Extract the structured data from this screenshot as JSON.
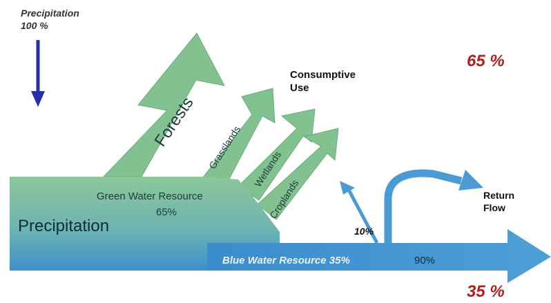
{
  "header": {
    "precip_title": "Precipitation",
    "precip_value": "100 %"
  },
  "percent_top": "65 %",
  "percent_bottom": "35 %",
  "consumptive_use": [
    "Consumptive",
    "Use"
  ],
  "return_flow": [
    "Return",
    "Flow"
  ],
  "main_flow_label": "Precipitation",
  "green_water": {
    "label": "Green Water Resource",
    "percent": "65%"
  },
  "blue_water": {
    "label": "Blue Water Resource 35%",
    "percent_right": "90%",
    "percent_branch": "10%"
  },
  "land_uses": [
    "Forests",
    "Grasslands",
    "Wetlands",
    "Croplands"
  ],
  "colors": {
    "green": "#7cbd8e",
    "blue": "#3f93c9",
    "arrow_dark": "#2a2fa3",
    "percent_red": "#b01e1e"
  }
}
